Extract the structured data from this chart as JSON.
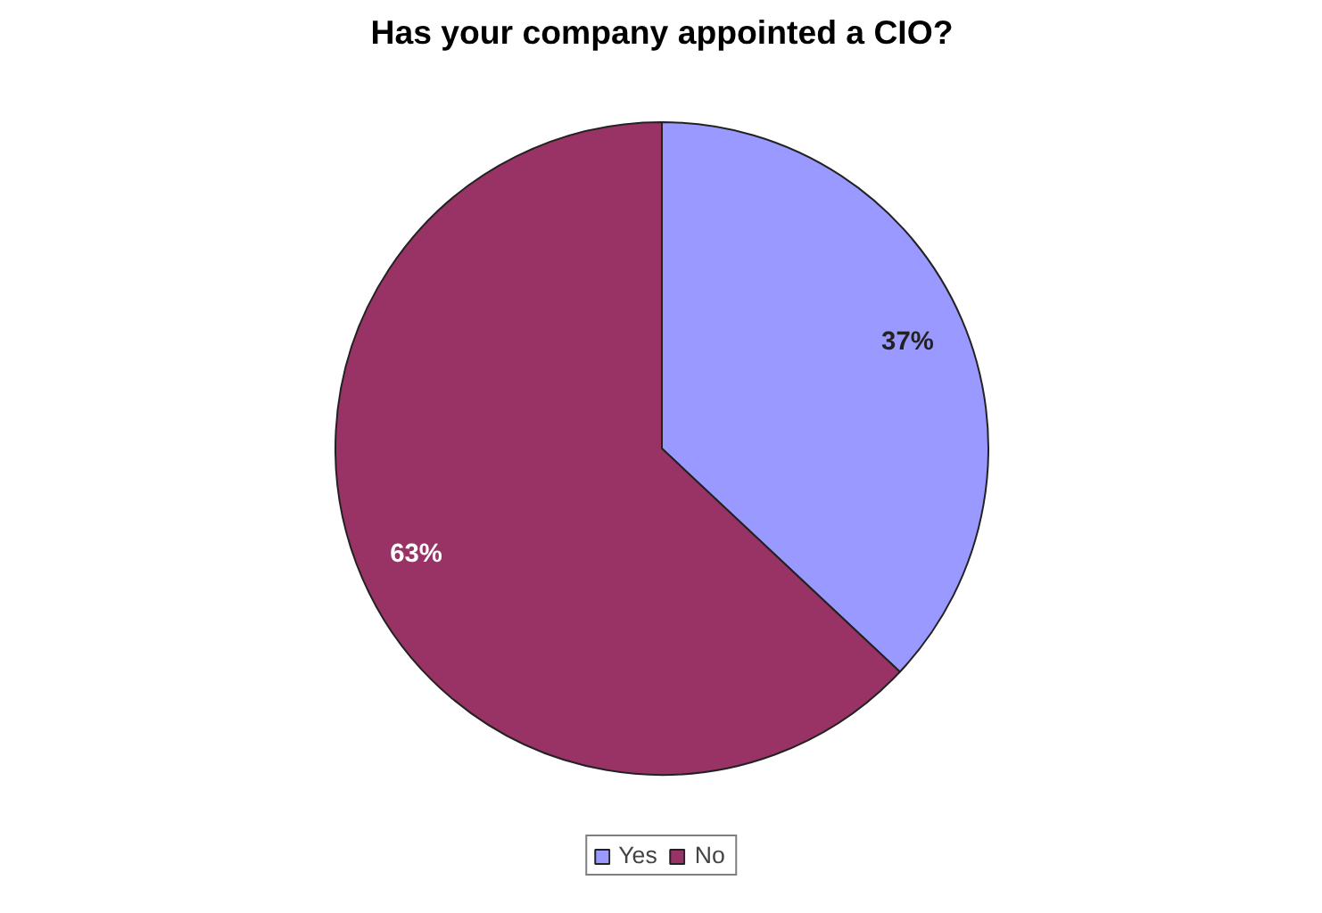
{
  "chart_data": {
    "type": "pie",
    "title": "Has your company appointed a CIO?",
    "categories": [
      "Yes",
      "No"
    ],
    "values": [
      37,
      63
    ],
    "colors": [
      "#9999ff",
      "#993366"
    ],
    "value_labels": [
      "37%",
      "63%"
    ],
    "legend": "bottom"
  }
}
